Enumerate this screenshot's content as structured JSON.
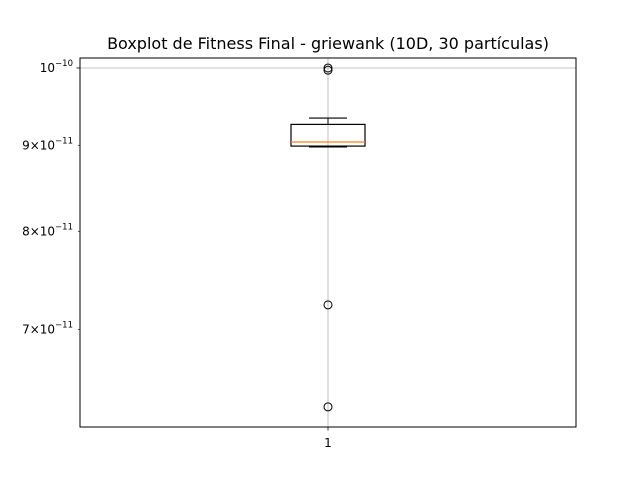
{
  "chart_data": {
    "type": "boxplot",
    "title": "Boxplot de Fitness Final - griewank (10D, 30 partículas)",
    "xlabel": "",
    "ylabel": "",
    "yscale": "log",
    "ylim": [
      6.13e-11,
      1.0137e-10
    ],
    "grid": true,
    "x_ticks": [
      {
        "label": "1"
      }
    ],
    "y_ticks": [
      {
        "value": 1e-10,
        "mantissa": "",
        "base": "10",
        "exponent": "−10"
      },
      {
        "value": 9e-11,
        "mantissa": "9×",
        "base": "10",
        "exponent": "−11"
      },
      {
        "value": 8e-11,
        "mantissa": "8×",
        "base": "10",
        "exponent": "−11"
      },
      {
        "value": 7e-11,
        "mantissa": "7×",
        "base": "10",
        "exponent": "−11"
      }
    ],
    "boxes": [
      {
        "category": "1",
        "whisker_low": 8.98e-11,
        "q1": 8.99e-11,
        "median": 9.04e-11,
        "q3": 9.26e-11,
        "whisker_high": 9.34e-11,
        "outliers": [
          6.3e-11,
          7.24e-11,
          9.97e-11,
          1e-10
        ]
      }
    ],
    "colors": {
      "box": "#000000",
      "median": "#ff7f0e",
      "grid": "#b0b0b0",
      "outlier_edge": "#000000"
    }
  }
}
